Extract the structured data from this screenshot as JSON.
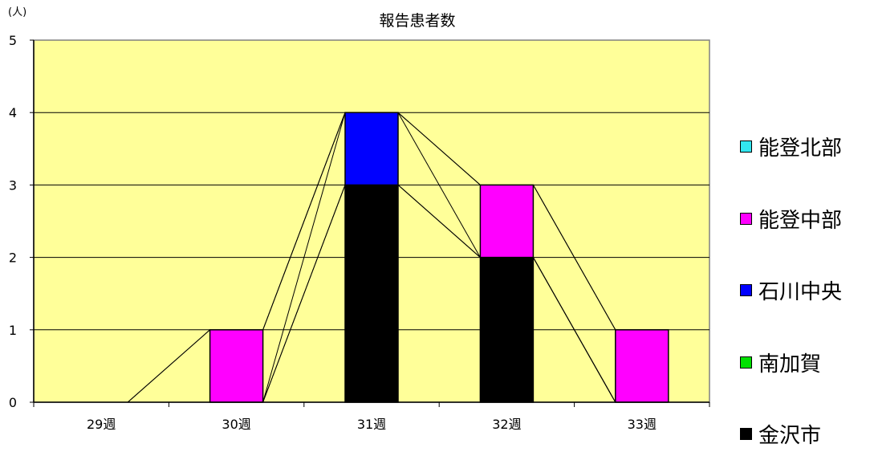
{
  "chart_data": {
    "type": "bar",
    "stacked": true,
    "title": "報告患者数",
    "y_unit_label": "(人)",
    "categories": [
      "29週",
      "30週",
      "31週",
      "32週",
      "33週"
    ],
    "ylim": [
      0,
      5
    ],
    "yticks": [
      0,
      1,
      2,
      3,
      4,
      5
    ],
    "grid": true,
    "legend_position": "right",
    "series": [
      {
        "name": "金沢市",
        "color": "#000000",
        "values": [
          0,
          0,
          3,
          2,
          0
        ]
      },
      {
        "name": "南加賀",
        "color": "#00e000",
        "values": [
          0,
          0,
          0,
          0,
          0
        ]
      },
      {
        "name": "石川中央",
        "color": "#0000ff",
        "values": [
          0,
          0,
          1,
          0,
          0
        ]
      },
      {
        "name": "能登中部",
        "color": "#ff00ff",
        "values": [
          0,
          1,
          0,
          1,
          1
        ]
      },
      {
        "name": "能登北部",
        "color": "#33e6f0",
        "values": [
          0,
          0,
          0,
          0,
          0
        ]
      }
    ],
    "legend_order": [
      "能登北部",
      "能登中部",
      "石川中央",
      "南加賀",
      "金沢市"
    ],
    "plot_background": "#ffff99"
  }
}
